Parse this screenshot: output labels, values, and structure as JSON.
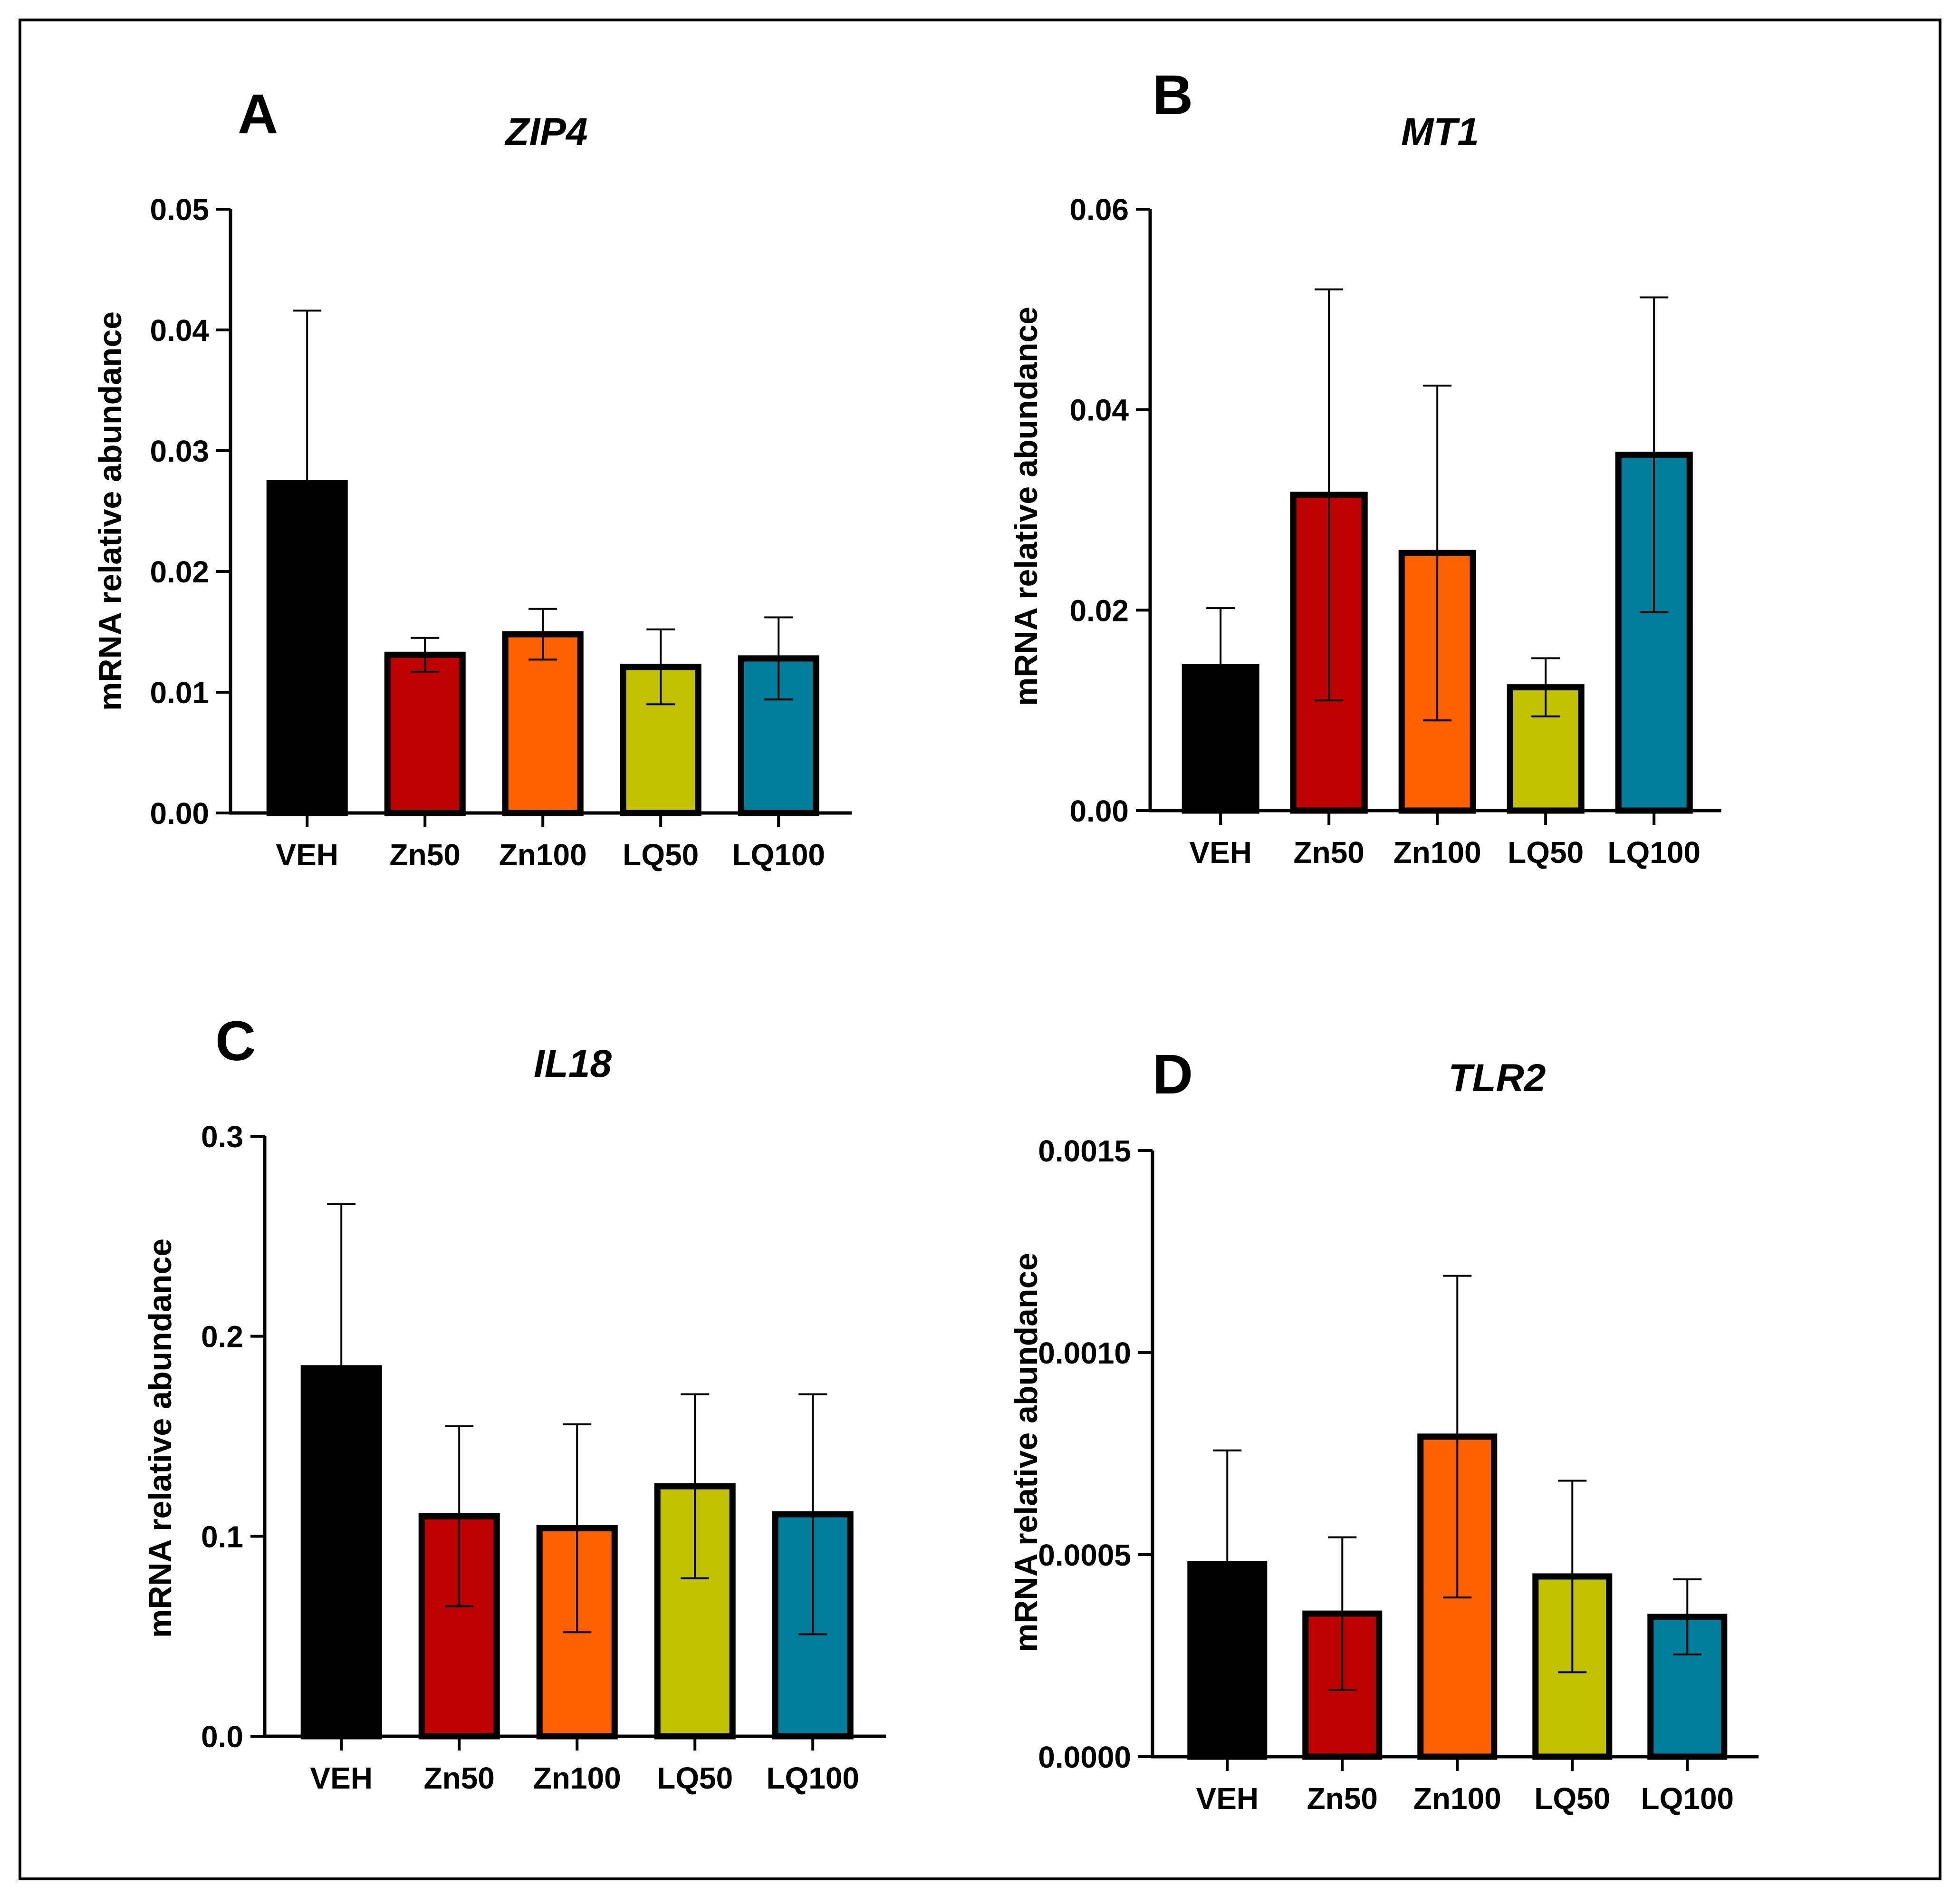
{
  "figure": {
    "frame_color": "#000000"
  },
  "chart_data": [
    {
      "panel": "A",
      "type": "bar",
      "title": "ZIP4",
      "xlabel": "",
      "ylabel": "mRNA relative abundance",
      "categories": [
        "VEH",
        "Zn50",
        "Zn100",
        "LQ50",
        "LQ100"
      ],
      "values": [
        0.0273,
        0.0131,
        0.0148,
        0.0121,
        0.0128
      ],
      "errors": [
        0.0143,
        0.0014,
        0.0021,
        0.0031,
        0.0034
      ],
      "ylim": [
        0,
        0.05
      ],
      "yticks": [
        0,
        0.01,
        0.02,
        0.03,
        0.04,
        0.05
      ],
      "ytick_labels": [
        "0.00",
        "0.01",
        "0.02",
        "0.03",
        "0.04",
        "0.05"
      ],
      "colors": [
        "#000000",
        "#BE0000",
        "#FF6100",
        "#C2C100",
        "#007E9C"
      ],
      "grid": false
    },
    {
      "panel": "B",
      "type": "bar",
      "title": "MT1",
      "xlabel": "",
      "ylabel": "mRNA relative abundance",
      "categories": [
        "VEH",
        "Zn50",
        "Zn100",
        "LQ50",
        "LQ100"
      ],
      "values": [
        0.0143,
        0.0315,
        0.0257,
        0.0123,
        0.0355
      ],
      "errors": [
        0.0059,
        0.0205,
        0.0167,
        0.0029,
        0.0157
      ],
      "ylim": [
        0,
        0.06
      ],
      "yticks": [
        0,
        0.02,
        0.04,
        0.06
      ],
      "ytick_labels": [
        "0.00",
        "0.02",
        "0.04",
        "0.06"
      ],
      "colors": [
        "#000000",
        "#BE0000",
        "#FF6100",
        "#C2C100",
        "#007E9C"
      ],
      "grid": false
    },
    {
      "panel": "C",
      "type": "bar",
      "title": "IL18",
      "xlabel": "",
      "ylabel": "mRNA relative abundance",
      "categories": [
        "VEH",
        "Zn50",
        "Zn100",
        "LQ50",
        "LQ100"
      ],
      "values": [
        0.184,
        0.11,
        0.104,
        0.125,
        0.111
      ],
      "errors": [
        0.082,
        0.045,
        0.052,
        0.046,
        0.06
      ],
      "ylim": [
        0,
        0.3
      ],
      "yticks": [
        0,
        0.1,
        0.2,
        0.3
      ],
      "ytick_labels": [
        "0.0",
        "0.1",
        "0.2",
        "0.3"
      ],
      "colors": [
        "#000000",
        "#BE0000",
        "#FF6100",
        "#C2C100",
        "#007E9C"
      ],
      "grid": false
    },
    {
      "panel": "D",
      "type": "bar",
      "title": "TLR2",
      "xlabel": "",
      "ylabel": "mRNA relative abundance",
      "categories": [
        "VEH",
        "Zn50",
        "Zn100",
        "LQ50",
        "LQ100"
      ],
      "values": [
        0.000477,
        0.000354,
        0.000792,
        0.000446,
        0.000346
      ],
      "errors": [
        0.000281,
        0.000189,
        0.000398,
        0.000237,
        9.3e-05
      ],
      "ylim": [
        0,
        0.0015
      ],
      "yticks": [
        0,
        0.0005,
        0.001,
        0.0015
      ],
      "ytick_labels": [
        "0.0000",
        "0.0005",
        "0.0010",
        "0.0015"
      ],
      "colors": [
        "#000000",
        "#BE0000",
        "#FF6100",
        "#C2C100",
        "#007E9C"
      ],
      "grid": false
    }
  ]
}
